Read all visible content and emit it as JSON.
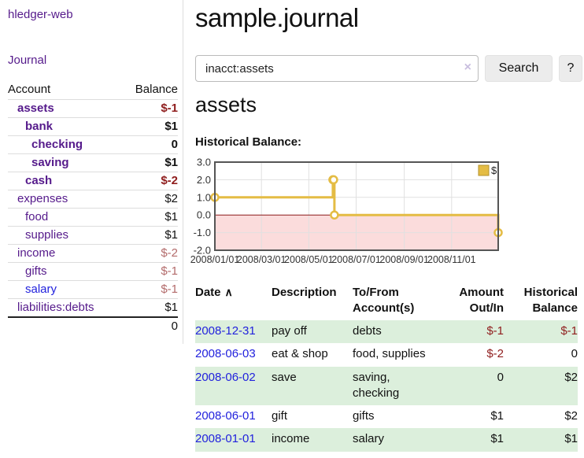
{
  "sidebar": {
    "brand": "hledger-web",
    "nav": {
      "journal": "Journal"
    },
    "accounts": {
      "headers": {
        "account": "Account",
        "balance": "Balance"
      },
      "rows": [
        {
          "account": "assets",
          "balance": "$-1",
          "depth": 1,
          "bold": true,
          "link": "purple",
          "bclass": "neg"
        },
        {
          "account": "bank",
          "balance": "$1",
          "depth": 2,
          "bold": true,
          "link": "purple",
          "bclass": ""
        },
        {
          "account": "checking",
          "balance": "0",
          "depth": 3,
          "bold": true,
          "link": "purple",
          "bclass": ""
        },
        {
          "account": "saving",
          "balance": "$1",
          "depth": 3,
          "bold": true,
          "link": "purple",
          "bclass": ""
        },
        {
          "account": "cash",
          "balance": "$-2",
          "depth": 2,
          "bold": true,
          "link": "purple",
          "bclass": "neg"
        },
        {
          "account": "expenses",
          "balance": "$2",
          "depth": 1,
          "bold": false,
          "link": "purple",
          "bclass": ""
        },
        {
          "account": "food",
          "balance": "$1",
          "depth": 2,
          "bold": false,
          "link": "purple",
          "bclass": ""
        },
        {
          "account": "supplies",
          "balance": "$1",
          "depth": 2,
          "bold": false,
          "link": "purple",
          "bclass": ""
        },
        {
          "account": "income",
          "balance": "$-2",
          "depth": 1,
          "bold": false,
          "link": "purple",
          "bclass": "dimneg"
        },
        {
          "account": "gifts",
          "balance": "$-1",
          "depth": 2,
          "bold": false,
          "link": "purple",
          "bclass": "dimneg"
        },
        {
          "account": "salary",
          "balance": "$-1",
          "depth": 2,
          "bold": false,
          "link": "blue",
          "bclass": "dimneg"
        },
        {
          "account": "liabilities:debts",
          "balance": "$1",
          "depth": 1,
          "bold": false,
          "link": "purple",
          "bclass": ""
        }
      ],
      "total": "0"
    }
  },
  "main": {
    "title": "sample.journal",
    "search": {
      "value": "inacct:assets",
      "clear_icon": "×",
      "search_button": "Search",
      "help_button": "?"
    },
    "account_heading": "assets",
    "chart_label": "Historical Balance:"
  },
  "chart_data": {
    "type": "line",
    "step": true,
    "title": "Historical Balance",
    "series": [
      {
        "name": "$",
        "points": [
          {
            "x": "2008-01-01",
            "y": 1
          },
          {
            "x": "2008-06-01",
            "y": 2
          },
          {
            "x": "2008-06-02",
            "y": 2
          },
          {
            "x": "2008-06-03",
            "y": 0
          },
          {
            "x": "2008-12-31",
            "y": -1
          }
        ]
      }
    ],
    "x_tick_labels": [
      "2008/01/01",
      "2008/03/01",
      "2008/05/01",
      "2008/07/01",
      "2008/09/01",
      "2008/11/01"
    ],
    "y_tick_labels": [
      "3.0",
      "2.0",
      "1.0",
      "0.0",
      "-1.0",
      "-2.0"
    ],
    "y_ticks": [
      3,
      2,
      1,
      0,
      -1,
      -2
    ],
    "ylim": [
      -2,
      3
    ],
    "x_start": "2008-01-01",
    "x_days": 365,
    "legend": {
      "label": "$",
      "position": "top-right"
    },
    "grid": true,
    "colors": {
      "line": "#e4bc44",
      "marker_fill": "#ffffff",
      "legend_border": "#b3922c",
      "negative_fill": "#fbdcdc",
      "zero_line": "#8b1a1a",
      "grid": "#e0e0e0",
      "border": "#555555",
      "tick_text": "#333333"
    }
  },
  "transactions": {
    "headers": {
      "date": "Date",
      "description": "Description",
      "accounts": "To/From Account(s)",
      "amount": "Amount Out/In",
      "balance": "Historical Balance"
    },
    "sort_indicator": "∧",
    "rows": [
      {
        "date": "2008-12-31",
        "description": "pay off",
        "accounts": "debts",
        "amount": "$-1",
        "amount_neg": true,
        "balance": "$-1",
        "balance_neg": true
      },
      {
        "date": "2008-06-03",
        "description": "eat & shop",
        "accounts": "food, supplies",
        "amount": "$-2",
        "amount_neg": true,
        "balance": "0",
        "balance_neg": false
      },
      {
        "date": "2008-06-02",
        "description": "save",
        "accounts": "saving, checking",
        "amount": "0",
        "amount_neg": false,
        "balance": "$2",
        "balance_neg": false
      },
      {
        "date": "2008-06-01",
        "description": "gift",
        "accounts": "gifts",
        "amount": "$1",
        "amount_neg": false,
        "balance": "$2",
        "balance_neg": false
      },
      {
        "date": "2008-01-01",
        "description": "income",
        "accounts": "salary",
        "amount": "$1",
        "amount_neg": false,
        "balance": "$1",
        "balance_neg": false
      }
    ]
  }
}
